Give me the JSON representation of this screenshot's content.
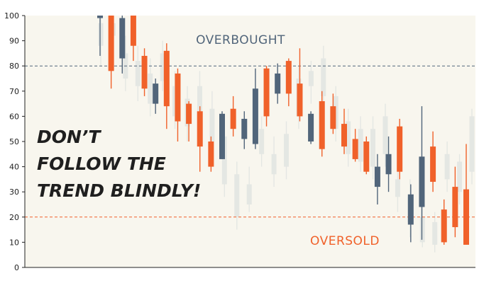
{
  "chart_data": {
    "type": "candlestick",
    "ylim": [
      0,
      100
    ],
    "yticks": [
      0,
      10,
      20,
      30,
      40,
      50,
      60,
      70,
      80,
      90,
      100
    ],
    "grid": false,
    "reference_lines": [
      {
        "value": 80,
        "label": "OVERBOUGHT",
        "color": "#51657a"
      },
      {
        "value": 20,
        "label": "OVERSOLD",
        "color": "#f0612a"
      }
    ],
    "headline": [
      "DON’T",
      "FOLLOW THE",
      "TREND BLINDLY!"
    ],
    "colors": {
      "bullish": "#51657a",
      "bearish": "#f0612a",
      "background": "#f8f6ee",
      "ghost": "#e4e7e3"
    },
    "series": [
      {
        "role": "ghost",
        "candles": [
          {
            "o": 88,
            "c": 97,
            "h": 100,
            "l": 80
          },
          {
            "o": 92,
            "c": 97,
            "h": 100,
            "l": 83
          },
          {
            "o": 85,
            "c": 75,
            "h": 92,
            "l": 70
          },
          {
            "o": 82,
            "c": 72,
            "h": 88,
            "l": 66
          },
          {
            "o": 77,
            "c": 65,
            "h": 83,
            "l": 60
          },
          {
            "o": 85,
            "c": 74,
            "h": 90,
            "l": 70
          },
          {
            "o": 72,
            "c": 60,
            "h": 78,
            "l": 55
          },
          {
            "o": 67,
            "c": 56,
            "h": 72,
            "l": 50
          },
          {
            "o": 72,
            "c": 58,
            "h": 78,
            "l": 52
          },
          {
            "o": 63,
            "c": 50,
            "h": 70,
            "l": 45
          },
          {
            "o": 52,
            "c": 33,
            "h": 60,
            "l": 28
          },
          {
            "o": 37,
            "c": 20,
            "h": 42,
            "l": 15
          },
          {
            "o": 25,
            "c": 33,
            "h": 40,
            "l": 22
          },
          {
            "o": 45,
            "c": 55,
            "h": 60,
            "l": 40
          },
          {
            "o": 45,
            "c": 37,
            "h": 52,
            "l": 32
          },
          {
            "o": 40,
            "c": 53,
            "h": 58,
            "l": 35
          },
          {
            "o": 75,
            "c": 60,
            "h": 80,
            "l": 55
          },
          {
            "o": 72,
            "c": 78,
            "h": 82,
            "l": 65
          },
          {
            "o": 83,
            "c": 68,
            "h": 88,
            "l": 62
          },
          {
            "o": 68,
            "c": 55,
            "h": 72,
            "l": 50
          },
          {
            "o": 58,
            "c": 45,
            "h": 63,
            "l": 40
          },
          {
            "o": 55,
            "c": 42,
            "h": 60,
            "l": 38
          },
          {
            "o": 40,
            "c": 55,
            "h": 60,
            "l": 35
          },
          {
            "o": 60,
            "c": 45,
            "h": 65,
            "l": 40
          },
          {
            "o": 35,
            "c": 28,
            "h": 40,
            "l": 22
          },
          {
            "o": 28,
            "c": 18,
            "h": 35,
            "l": 12
          },
          {
            "o": 20,
            "c": 10,
            "h": 25,
            "l": 8
          },
          {
            "o": 18,
            "c": 9,
            "h": 22,
            "l": 6
          },
          {
            "o": 45,
            "c": 35,
            "h": 50,
            "l": 30
          },
          {
            "o": 30,
            "c": 42,
            "h": 45,
            "l": 25
          },
          {
            "o": 38,
            "c": 60,
            "h": 63,
            "l": 33
          }
        ]
      },
      {
        "role": "main",
        "candles": [
          {
            "o": 99,
            "c": 100,
            "h": 100,
            "l": 84
          },
          {
            "o": 100,
            "c": 78,
            "h": 100,
            "l": 71
          },
          {
            "o": 83,
            "c": 99,
            "h": 100,
            "l": 77
          },
          {
            "o": 100,
            "c": 88,
            "h": 100,
            "l": 82
          },
          {
            "o": 84,
            "c": 71,
            "h": 87,
            "l": 68
          },
          {
            "o": 65,
            "c": 73,
            "h": 75,
            "l": 61
          },
          {
            "o": 86,
            "c": 64,
            "h": 89,
            "l": 55
          },
          {
            "o": 77,
            "c": 58,
            "h": 79,
            "l": 50
          },
          {
            "o": 65,
            "c": 57,
            "h": 66,
            "l": 50
          },
          {
            "o": 62,
            "c": 48,
            "h": 64,
            "l": 38
          },
          {
            "o": 50,
            "c": 40,
            "h": 52,
            "l": 38
          },
          {
            "o": 43,
            "c": 61,
            "h": 62,
            "l": 43
          },
          {
            "o": 63,
            "c": 55,
            "h": 68,
            "l": 52
          },
          {
            "o": 51,
            "c": 59,
            "h": 62,
            "l": 47
          },
          {
            "o": 49,
            "c": 71,
            "h": 79,
            "l": 47
          },
          {
            "o": 79,
            "c": 60,
            "h": 80,
            "l": 56
          },
          {
            "o": 69,
            "c": 77,
            "h": 81,
            "l": 65
          },
          {
            "o": 82,
            "c": 69,
            "h": 83,
            "l": 64
          },
          {
            "o": 73,
            "c": 60,
            "h": 87,
            "l": 58
          },
          {
            "o": 50,
            "c": 61,
            "h": 62,
            "l": 49
          },
          {
            "o": 66,
            "c": 47,
            "h": 70,
            "l": 44
          },
          {
            "o": 64,
            "c": 55,
            "h": 69,
            "l": 53
          },
          {
            "o": 57,
            "c": 48,
            "h": 63,
            "l": 45
          },
          {
            "o": 51,
            "c": 43,
            "h": 55,
            "l": 42
          },
          {
            "o": 50,
            "c": 38,
            "h": 52,
            "l": 37
          },
          {
            "o": 32,
            "c": 40,
            "h": 45,
            "l": 25
          },
          {
            "o": 37,
            "c": 45,
            "h": 52,
            "l": 30
          },
          {
            "o": 56,
            "c": 38,
            "h": 59,
            "l": 35
          },
          {
            "o": 17,
            "c": 29,
            "h": 33,
            "l": 10
          },
          {
            "o": 24,
            "c": 44,
            "h": 64,
            "l": 11
          },
          {
            "o": 48,
            "c": 34,
            "h": 54,
            "l": 30
          },
          {
            "o": 23,
            "c": 10,
            "h": 27,
            "l": 9
          },
          {
            "o": 32,
            "c": 16,
            "h": 40,
            "l": 12
          },
          {
            "o": 31,
            "c": 9,
            "h": 49,
            "l": 9
          }
        ]
      }
    ]
  }
}
